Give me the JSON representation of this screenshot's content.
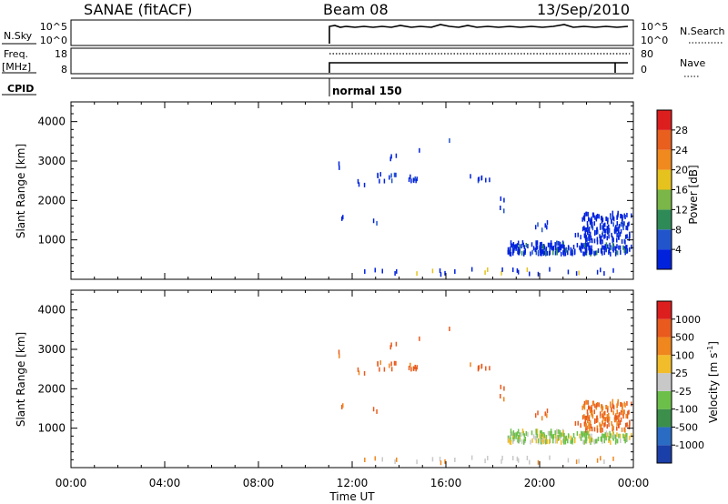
{
  "header": {
    "station": "SANAE (fitACF)",
    "beam": "Beam 08",
    "date": "13/Sep/2010"
  },
  "param_panels": {
    "nsky_label": "N.Sky",
    "nsky_ticks": [
      "10^5",
      "10^0"
    ],
    "nsearch_label": "N.Search",
    "nsearch_ticks": [
      "10^5",
      "10^0"
    ],
    "freq_label": "Freq.",
    "freq_unit": "[MHz]",
    "freq_ticks": [
      "18",
      "8"
    ],
    "nave_label": "Nave",
    "nave_ticks": [
      "80",
      "0"
    ],
    "cpid_label": "CPID",
    "cpid_value": "normal 150"
  },
  "time_axis": {
    "label": "Time UT",
    "ticks": [
      "00:00",
      "04:00",
      "08:00",
      "12:00",
      "16:00",
      "20:00",
      "00:00"
    ]
  },
  "chart_data": [
    {
      "type": "heatmap",
      "panel": "power",
      "ylabel": "Slant Range [km]",
      "yticks": [
        "1000",
        "2000",
        "3000",
        "4000"
      ],
      "ylim": [
        0,
        4500
      ],
      "xlim_hours": [
        0,
        24
      ],
      "colorbar": {
        "label": "Power [dB]",
        "ticks": [
          "4",
          "8",
          "12",
          "16",
          "20",
          "24",
          "28"
        ],
        "range": [
          0,
          32
        ],
        "colors": [
          "#0022dd",
          "#2255cc",
          "#2e8b57",
          "#7ab648",
          "#e6c21e",
          "#f08a1e",
          "#e85f1e",
          "#dd1e1e"
        ]
      },
      "data_start_hour": 11.0
    },
    {
      "type": "heatmap",
      "panel": "velocity",
      "ylabel": "Slant Range [km]",
      "yticks": [
        "1000",
        "2000",
        "3000",
        "4000"
      ],
      "ylim": [
        0,
        4500
      ],
      "xlim_hours": [
        0,
        24
      ],
      "colorbar": {
        "label": "Velocity [m s",
        "label_sup": "-1",
        "label_end": "]",
        "ticks": [
          "1000",
          "500",
          "100",
          "25",
          "-25",
          "-100",
          "-500",
          "-1000"
        ],
        "colors": [
          "#1b3fa8",
          "#2a6cc4",
          "#3c8f4a",
          "#6cc04a",
          "#c8c8c8",
          "#f2bd2a",
          "#f0861e",
          "#e85a1e",
          "#dd1e1e"
        ]
      }
    }
  ]
}
